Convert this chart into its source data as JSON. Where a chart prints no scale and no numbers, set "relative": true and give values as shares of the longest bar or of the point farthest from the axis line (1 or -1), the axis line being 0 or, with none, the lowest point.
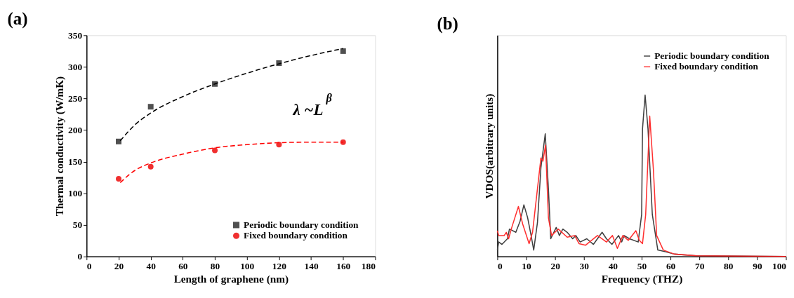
{
  "chart_data": [
    {
      "type": "scatter",
      "title": "(a)",
      "xlabel": "Length of graphene (nm)",
      "ylabel": "Thermal conductivity (W/mK)",
      "xlim": [
        0,
        180
      ],
      "xticks": [
        0,
        20,
        40,
        60,
        80,
        100,
        120,
        140,
        160,
        180
      ],
      "ylim": [
        0,
        350
      ],
      "yticks": [
        0,
        50,
        100,
        150,
        200,
        250,
        300,
        350
      ],
      "grid": false,
      "legend": "bottom right",
      "annotations": [
        "λ ~L$^{β}$"
      ],
      "series": [
        {
          "name": "Periodic boundary condition",
          "color": "#505050",
          "marker": "square",
          "x": [
            20,
            40,
            80,
            120,
            160
          ],
          "values": [
            182,
            237,
            273,
            306,
            325
          ]
        },
        {
          "name": "Fixed boundary condition",
          "color": "#f03030",
          "marker": "circle",
          "x": [
            20,
            40,
            80,
            120,
            160
          ],
          "values": [
            123,
            142,
            168,
            177,
            181
          ]
        },
        {
          "type": "line",
          "color": "#000000",
          "line_style": "dashed",
          "marker": "none",
          "x": [
            21,
            30,
            40,
            60,
            80,
            100,
            120,
            140,
            160
          ],
          "values": [
            183,
            208,
            227,
            253,
            273,
            290,
            305,
            318,
            329
          ]
        },
        {
          "type": "line",
          "color": "#ff0000",
          "line_style": "dashed",
          "marker": "none",
          "x": [
            21,
            30,
            40,
            60,
            80,
            100,
            120,
            140,
            160
          ],
          "values": [
            117,
            136,
            148,
            162,
            172,
            177,
            180,
            181,
            181
          ]
        }
      ]
    },
    {
      "type": "line",
      "title": "(b)",
      "xlabel": "Frequency (THZ)",
      "ylabel": "VDOS(arbitrary units)",
      "relative": true,
      "xlim": [
        0,
        100
      ],
      "xticks": [
        0,
        10,
        20,
        30,
        40,
        50,
        60,
        70,
        80,
        90,
        100
      ],
      "grid": false,
      "legend": "top right",
      "marker": "none",
      "line_style": "solid",
      "series": [
        {
          "name": "Periodic boundary condition",
          "color": "#404040",
          "x": [
            0,
            0.5,
            1.6,
            3.5,
            4.2,
            6.4,
            7.9,
            9.2,
            10.5,
            11.7,
            12.6,
            13.9,
            15.1,
            16.6,
            17.7,
            18.5,
            20.4,
            21.5,
            22.7,
            24.2,
            26.1,
            27.2,
            28.7,
            31,
            33.3,
            36.3,
            37.8,
            39.7,
            42,
            43.1,
            43.9,
            45.8,
            48.8,
            50,
            50.3,
            51.2,
            52.2,
            53.7,
            55.6,
            58.3,
            61.3,
            68.9,
            100
          ],
          "values": [
            0.04,
            0.09,
            0.075,
            0.11,
            0.17,
            0.15,
            0.22,
            0.32,
            0.24,
            0.13,
            0.04,
            0.21,
            0.55,
            0.76,
            0.42,
            0.11,
            0.18,
            0.13,
            0.17,
            0.15,
            0.11,
            0.13,
            0.09,
            0.11,
            0.075,
            0.15,
            0.11,
            0.075,
            0.13,
            0.09,
            0.13,
            0.11,
            0.09,
            0.26,
            0.79,
            1.0,
            0.79,
            0.26,
            0.04,
            0.03,
            0.015,
            0.005,
            0
          ]
        },
        {
          "name": "Fixed boundary condition",
          "color": "#ff3030",
          "x": [
            0,
            0.5,
            2.4,
            3.1,
            3.9,
            5.0,
            7.3,
            8.8,
            11,
            12.2,
            15.1,
            15.8,
            16.7,
            17.7,
            18.8,
            21.1,
            24.2,
            26.8,
            28.3,
            30.6,
            34.7,
            37.8,
            39.9,
            41.6,
            43.5,
            45.4,
            48,
            49.2,
            50.3,
            51.4,
            52.8,
            54.1,
            55.2,
            57.5,
            61.3,
            68.9,
            100
          ],
          "values": [
            0.16,
            0.13,
            0.13,
            0.15,
            0.11,
            0.18,
            0.31,
            0.2,
            0.08,
            0.15,
            0.61,
            0.59,
            0.69,
            0.24,
            0.13,
            0.17,
            0.12,
            0.13,
            0.08,
            0.07,
            0.13,
            0.09,
            0.13,
            0.05,
            0.13,
            0.1,
            0.16,
            0.1,
            0.08,
            0.26,
            0.87,
            0.53,
            0.13,
            0.04,
            0.015,
            0.005,
            0
          ]
        }
      ]
    }
  ]
}
